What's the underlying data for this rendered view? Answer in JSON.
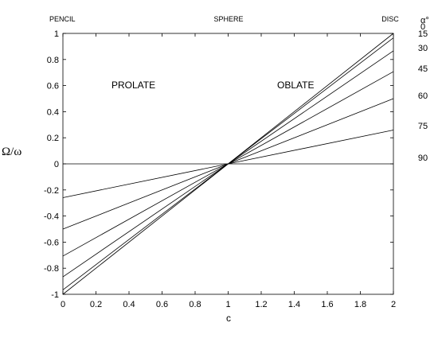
{
  "chart_data": {
    "type": "line",
    "xlabel": "c",
    "ylabel": "Ω/ω",
    "xlim": [
      0,
      2
    ],
    "ylim": [
      -1,
      1
    ],
    "xticks": [
      "0",
      "0.2",
      "0.4",
      "0.6",
      "0.8",
      "1",
      "1.2",
      "1.4",
      "1.6",
      "1.8",
      "2"
    ],
    "yticks": [
      "-1",
      "-0.8",
      "-0.6",
      "-0.4",
      "-0.2",
      "0",
      "0.2",
      "0.4",
      "0.6",
      "0.8",
      "1"
    ],
    "top_labels": [
      "PENCIL",
      "SPHERE",
      "DISC"
    ],
    "region_labels": [
      "PROLATE",
      "OBLATE"
    ],
    "legend_title": "α°",
    "series": [
      {
        "name": "0",
        "x": [
          0,
          2
        ],
        "y": [
          -1,
          1
        ]
      },
      {
        "name": "15",
        "x": [
          0,
          2
        ],
        "y": [
          -0.966,
          0.966
        ]
      },
      {
        "name": "30",
        "x": [
          0,
          2
        ],
        "y": [
          -0.866,
          0.866
        ]
      },
      {
        "name": "45",
        "x": [
          0,
          2
        ],
        "y": [
          -0.707,
          0.707
        ]
      },
      {
        "name": "60",
        "x": [
          0,
          2
        ],
        "y": [
          -0.5,
          0.5
        ]
      },
      {
        "name": "75",
        "x": [
          0,
          2
        ],
        "y": [
          -0.259,
          0.259
        ]
      },
      {
        "name": "90",
        "x": [
          0,
          2
        ],
        "y": [
          0,
          0
        ]
      }
    ]
  }
}
